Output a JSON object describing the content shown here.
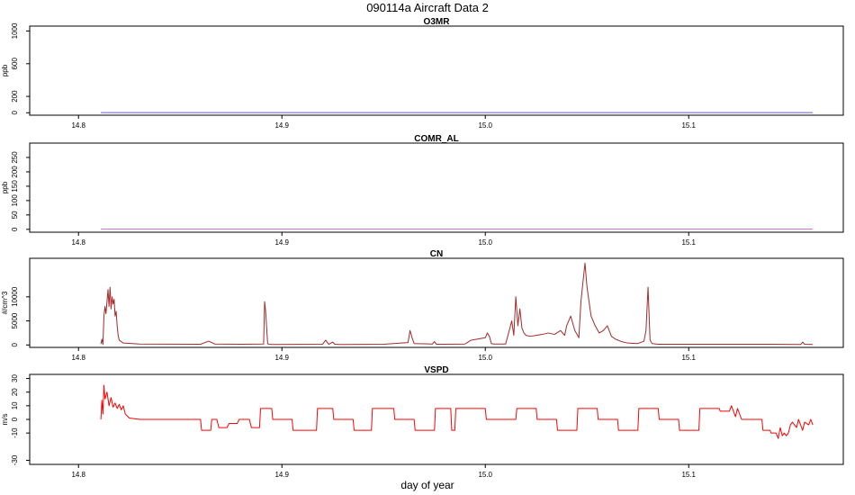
{
  "figure": {
    "title": "090114a   Aircraft Data 2",
    "xlabel": "day of year"
  },
  "colors": {
    "O3MR": "#6a5acd",
    "COMR_AL": "#da70d6",
    "CN": "#a52a2a",
    "VSPD": "#ff0000"
  },
  "chart_data": [
    {
      "type": "line",
      "title": "O3MR",
      "ylabel": "ppb",
      "xlim": [
        14.776,
        15.176
      ],
      "ylim": [
        -30,
        1060
      ],
      "xticks": [
        14.8,
        14.9,
        15.0,
        15.1
      ],
      "xtick_labels": [
        "14.8",
        "14.9",
        "15.0",
        "15.1"
      ],
      "yticks": [
        0,
        200,
        600,
        1000
      ],
      "ytick_labels": [
        "0",
        "200",
        "600",
        "1000"
      ],
      "series": [
        {
          "x": [
            14.811,
            15.161
          ],
          "y": [
            2,
            2
          ]
        }
      ]
    },
    {
      "type": "line",
      "title": "COMR_AL",
      "ylabel": "ppb",
      "xlim": [
        14.776,
        15.176
      ],
      "ylim": [
        -10,
        300
      ],
      "xticks": [
        14.8,
        14.9,
        15.0,
        15.1
      ],
      "xtick_labels": [
        "14.8",
        "14.9",
        "15.0",
        "15.1"
      ],
      "yticks": [
        0,
        50,
        100,
        150,
        200,
        250
      ],
      "ytick_labels": [
        "0",
        "50",
        "100",
        "150",
        "200",
        "250"
      ],
      "series": [
        {
          "x": [
            14.811,
            15.161
          ],
          "y": [
            1,
            1
          ]
        }
      ]
    },
    {
      "type": "line",
      "title": "CN",
      "ylabel": "#/cm^3",
      "xlim": [
        14.776,
        15.176
      ],
      "ylim": [
        -500,
        18000
      ],
      "xticks": [
        14.8,
        14.9,
        15.0,
        15.1
      ],
      "xtick_labels": [
        "14.8",
        "14.9",
        "15.0",
        "15.1"
      ],
      "yticks": [
        0,
        5000,
        10000
      ],
      "ytick_labels": [
        "0",
        "5000",
        "10000"
      ],
      "series": [
        {
          "x": [
            14.811,
            14.8115,
            14.812,
            14.8125,
            14.813,
            14.8135,
            14.814,
            14.8145,
            14.815,
            14.8155,
            14.816,
            14.8165,
            14.817,
            14.8175,
            14.818,
            14.8185,
            14.819,
            14.8195,
            14.82,
            14.822,
            14.83,
            14.86,
            14.864,
            14.867,
            14.88,
            14.891,
            14.8915,
            14.892,
            14.8925,
            14.893,
            14.8935,
            14.895,
            14.92,
            14.9215,
            14.923,
            14.925,
            14.926,
            14.928,
            14.95,
            14.962,
            14.963,
            14.964,
            14.965,
            14.974,
            14.975,
            14.976,
            14.99,
            14.993,
            15.0,
            15.001,
            15.002,
            15.003,
            15.004,
            15.01,
            15.013,
            15.014,
            15.015,
            15.016,
            15.017,
            15.018,
            15.019,
            15.02,
            15.022,
            15.025,
            15.028,
            15.031,
            15.034,
            15.037,
            15.039,
            15.04,
            15.042,
            15.044,
            15.046,
            15.047,
            15.048,
            15.049,
            15.05,
            15.051,
            15.052,
            15.054,
            15.056,
            15.058,
            15.06,
            15.062,
            15.064,
            15.067,
            15.07,
            15.075,
            15.078,
            15.079,
            15.08,
            15.081,
            15.082,
            15.085,
            15.1,
            15.12,
            15.14,
            15.155,
            15.156,
            15.157,
            15.161
          ],
          "y": [
            200,
            1200,
            100,
            6000,
            8000,
            6500,
            9000,
            11500,
            8000,
            12000,
            7500,
            10000,
            8500,
            9500,
            6000,
            7000,
            4000,
            2000,
            1000,
            400,
            200,
            150,
            800,
            200,
            150,
            200,
            9000,
            7000,
            3500,
            300,
            150,
            100,
            150,
            1000,
            150,
            600,
            150,
            100,
            150,
            500,
            3000,
            1500,
            300,
            200,
            700,
            150,
            200,
            1000,
            1500,
            2500,
            1800,
            300,
            200,
            200,
            5000,
            2000,
            10000,
            4000,
            7500,
            3500,
            2500,
            2000,
            1800,
            2000,
            2200,
            2500,
            2200,
            3000,
            2000,
            4000,
            6000,
            3000,
            1500,
            9000,
            13000,
            17000,
            12000,
            9000,
            6000,
            4000,
            2500,
            3000,
            4000,
            1800,
            1200,
            700,
            400,
            300,
            800,
            3000,
            12000,
            1000,
            300,
            150,
            150,
            150,
            150,
            100,
            600,
            150,
            100
          ]
        }
      ]
    },
    {
      "type": "line",
      "title": "VSPD",
      "ylabel": "m/s",
      "xlim": [
        14.776,
        15.176
      ],
      "ylim": [
        -33,
        33
      ],
      "xticks": [
        14.8,
        14.9,
        15.0,
        15.1
      ],
      "xtick_labels": [
        "14.8",
        "14.9",
        "15.0",
        "15.1"
      ],
      "yticks": [
        -30,
        -10,
        0,
        10,
        20,
        30
      ],
      "ytick_labels": [
        "-30",
        "-10",
        "0",
        "10",
        "20",
        "30"
      ],
      "series": [
        {
          "x": [
            14.811,
            14.8115,
            14.812,
            14.8125,
            14.813,
            14.814,
            14.815,
            14.816,
            14.817,
            14.818,
            14.819,
            14.82,
            14.821,
            14.822,
            14.823,
            14.825,
            14.83,
            14.86,
            14.8605,
            14.865,
            14.8655,
            14.868,
            14.869,
            14.873,
            14.874,
            14.878,
            14.879,
            14.884,
            14.885,
            14.889,
            14.8895,
            14.895,
            14.8955,
            14.905,
            14.9055,
            14.917,
            14.9175,
            14.925,
            14.9255,
            14.935,
            14.9355,
            14.944,
            14.9445,
            14.955,
            14.9555,
            14.965,
            14.9655,
            14.975,
            14.9755,
            14.983,
            14.9835,
            14.985,
            14.9855,
            15.0,
            15.0005,
            15.015,
            15.0155,
            15.025,
            15.0255,
            15.035,
            15.0355,
            15.045,
            15.0455,
            15.055,
            15.0555,
            15.065,
            15.0655,
            15.075,
            15.0755,
            15.085,
            15.0855,
            15.095,
            15.0955,
            15.105,
            15.1055,
            15.115,
            15.1155,
            15.12,
            15.121,
            15.123,
            15.124,
            15.126,
            15.127,
            15.1275,
            15.136,
            15.1365,
            15.14,
            15.1405,
            15.143,
            15.144,
            15.145,
            15.146,
            15.147,
            15.148,
            15.149,
            15.15,
            15.151,
            15.153,
            15.154,
            15.156,
            15.157,
            15.159,
            15.16,
            15.161
          ],
          "y": [
            0,
            14,
            4,
            25,
            15,
            20,
            10,
            16,
            9,
            12,
            8,
            11,
            7,
            10,
            4,
            1,
            0,
            0,
            -8,
            -8,
            0,
            0,
            -6,
            -6,
            -3,
            -3,
            0,
            0,
            -6,
            -6,
            8,
            8,
            0,
            0,
            -8,
            -8,
            8,
            8,
            0,
            0,
            -8,
            -8,
            8,
            8,
            0,
            0,
            -8,
            -8,
            8,
            8,
            -8,
            -8,
            8,
            8,
            0,
            0,
            8,
            8,
            0,
            0,
            -8,
            -8,
            8,
            8,
            0,
            0,
            -8,
            -8,
            8,
            8,
            0,
            0,
            -8,
            -8,
            8,
            8,
            6,
            6,
            10,
            2,
            8,
            0,
            0,
            0,
            0,
            -8,
            -8,
            -10,
            -10,
            -14,
            -6,
            -12,
            -10,
            -12,
            -10,
            -4,
            -2,
            -6,
            0,
            -8,
            -2,
            -4,
            0,
            -4
          ]
        }
      ]
    }
  ]
}
